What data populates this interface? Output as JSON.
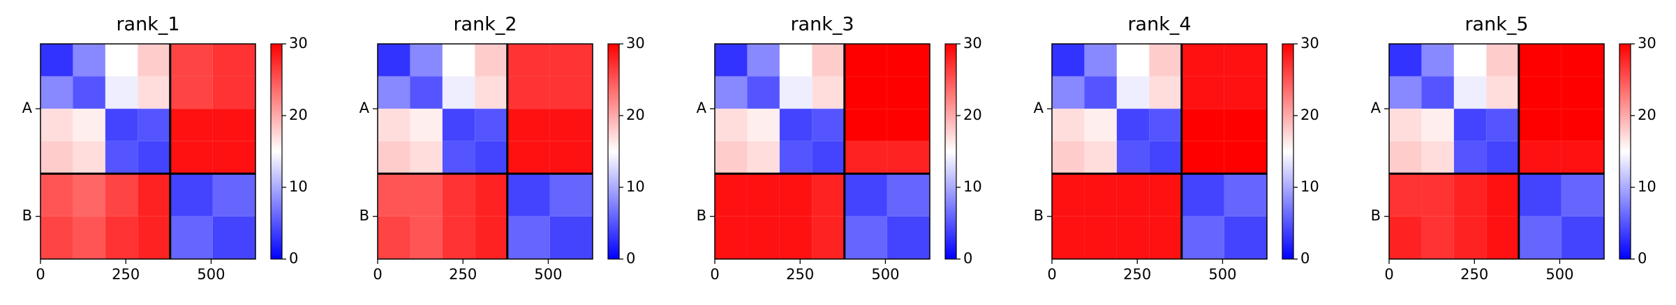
{
  "chart_data": [
    {
      "type": "heatmap",
      "title": "rank_1",
      "x_edges": [
        0,
        95,
        190,
        285,
        380,
        505,
        630
      ],
      "values": [
        [
          3,
          8,
          15,
          18,
          26,
          27
        ],
        [
          8,
          5,
          14,
          17,
          26,
          27
        ],
        [
          17,
          16,
          4,
          5,
          29,
          29
        ],
        [
          18,
          17,
          5,
          4,
          29,
          29
        ],
        [
          25,
          24,
          26,
          28,
          4,
          6
        ],
        [
          26,
          25,
          27,
          28,
          6,
          4
        ]
      ],
      "xlim": [
        0,
        630
      ],
      "xticks": [
        0,
        250,
        500
      ],
      "ylim": [
        630,
        0
      ],
      "yticks": [
        {
          "value": 190,
          "label": "A"
        },
        {
          "value": 505,
          "label": "B"
        }
      ],
      "chain_breaks": [
        380
      ],
      "clim": [
        0,
        30
      ],
      "cticks": [
        0,
        10,
        20,
        30
      ],
      "colormap": [
        "#0000ff",
        "#ffffff",
        "#ff0000"
      ]
    },
    {
      "type": "heatmap",
      "title": "rank_2",
      "x_edges": [
        0,
        95,
        190,
        285,
        380,
        505,
        630
      ],
      "values": [
        [
          3,
          8,
          15,
          18,
          27,
          27
        ],
        [
          8,
          5,
          14,
          17,
          27,
          27
        ],
        [
          17,
          16,
          4,
          5,
          29,
          29
        ],
        [
          18,
          17,
          5,
          4,
          29,
          29
        ],
        [
          25,
          25,
          27,
          28,
          4,
          6
        ],
        [
          26,
          25,
          27,
          28,
          6,
          4
        ]
      ],
      "xlim": [
        0,
        630
      ],
      "xticks": [
        0,
        250,
        500
      ],
      "ylim": [
        630,
        0
      ],
      "yticks": [
        {
          "value": 190,
          "label": "A"
        },
        {
          "value": 505,
          "label": "B"
        }
      ],
      "chain_breaks": [
        380
      ],
      "clim": [
        0,
        30
      ],
      "cticks": [
        0,
        10,
        20,
        30
      ],
      "colormap": [
        "#0000ff",
        "#ffffff",
        "#ff0000"
      ]
    },
    {
      "type": "heatmap",
      "title": "rank_3",
      "x_edges": [
        0,
        95,
        190,
        285,
        380,
        505,
        630
      ],
      "values": [
        [
          3,
          8,
          15,
          18,
          30,
          30
        ],
        [
          8,
          5,
          14,
          17,
          30,
          30
        ],
        [
          17,
          16,
          4,
          5,
          30,
          30
        ],
        [
          18,
          17,
          5,
          4,
          28,
          28
        ],
        [
          29,
          29,
          29,
          28,
          4,
          6
        ],
        [
          29,
          29,
          29,
          28,
          6,
          4
        ]
      ],
      "xlim": [
        0,
        630
      ],
      "xticks": [
        0,
        250,
        500
      ],
      "ylim": [
        630,
        0
      ],
      "yticks": [
        {
          "value": 190,
          "label": "A"
        },
        {
          "value": 505,
          "label": "B"
        }
      ],
      "chain_breaks": [
        380
      ],
      "clim": [
        0,
        30
      ],
      "cticks": [
        0,
        10,
        20,
        30
      ],
      "colormap": [
        "#0000ff",
        "#ffffff",
        "#ff0000"
      ]
    },
    {
      "type": "heatmap",
      "title": "rank_4",
      "x_edges": [
        0,
        95,
        190,
        285,
        380,
        505,
        630
      ],
      "values": [
        [
          3,
          8,
          15,
          18,
          29,
          29
        ],
        [
          8,
          5,
          14,
          17,
          29,
          29
        ],
        [
          17,
          16,
          4,
          5,
          30,
          30
        ],
        [
          18,
          17,
          5,
          4,
          30,
          30
        ],
        [
          29,
          29,
          29,
          29,
          4,
          6
        ],
        [
          29,
          29,
          29,
          29,
          6,
          4
        ]
      ],
      "xlim": [
        0,
        630
      ],
      "xticks": [
        0,
        250,
        500
      ],
      "ylim": [
        630,
        0
      ],
      "yticks": [
        {
          "value": 190,
          "label": "A"
        },
        {
          "value": 505,
          "label": "B"
        }
      ],
      "chain_breaks": [
        380
      ],
      "clim": [
        0,
        30
      ],
      "cticks": [
        0,
        10,
        20,
        30
      ],
      "colormap": [
        "#0000ff",
        "#ffffff",
        "#ff0000"
      ]
    },
    {
      "type": "heatmap",
      "title": "rank_5",
      "x_edges": [
        0,
        95,
        190,
        285,
        380,
        505,
        630
      ],
      "values": [
        [
          3,
          8,
          15,
          18,
          30,
          30
        ],
        [
          8,
          5,
          14,
          17,
          30,
          30
        ],
        [
          17,
          16,
          4,
          5,
          30,
          30
        ],
        [
          18,
          17,
          5,
          4,
          29,
          29
        ],
        [
          27,
          27,
          28,
          29,
          4,
          6
        ],
        [
          28,
          27,
          28,
          29,
          6,
          4
        ]
      ],
      "xlim": [
        0,
        630
      ],
      "xticks": [
        0,
        250,
        500
      ],
      "ylim": [
        630,
        0
      ],
      "yticks": [
        {
          "value": 190,
          "label": "A"
        },
        {
          "value": 505,
          "label": "B"
        }
      ],
      "chain_breaks": [
        380
      ],
      "clim": [
        0,
        30
      ],
      "cticks": [
        0,
        10,
        20,
        30
      ],
      "colormap": [
        "#0000ff",
        "#ffffff",
        "#ff0000"
      ]
    }
  ]
}
